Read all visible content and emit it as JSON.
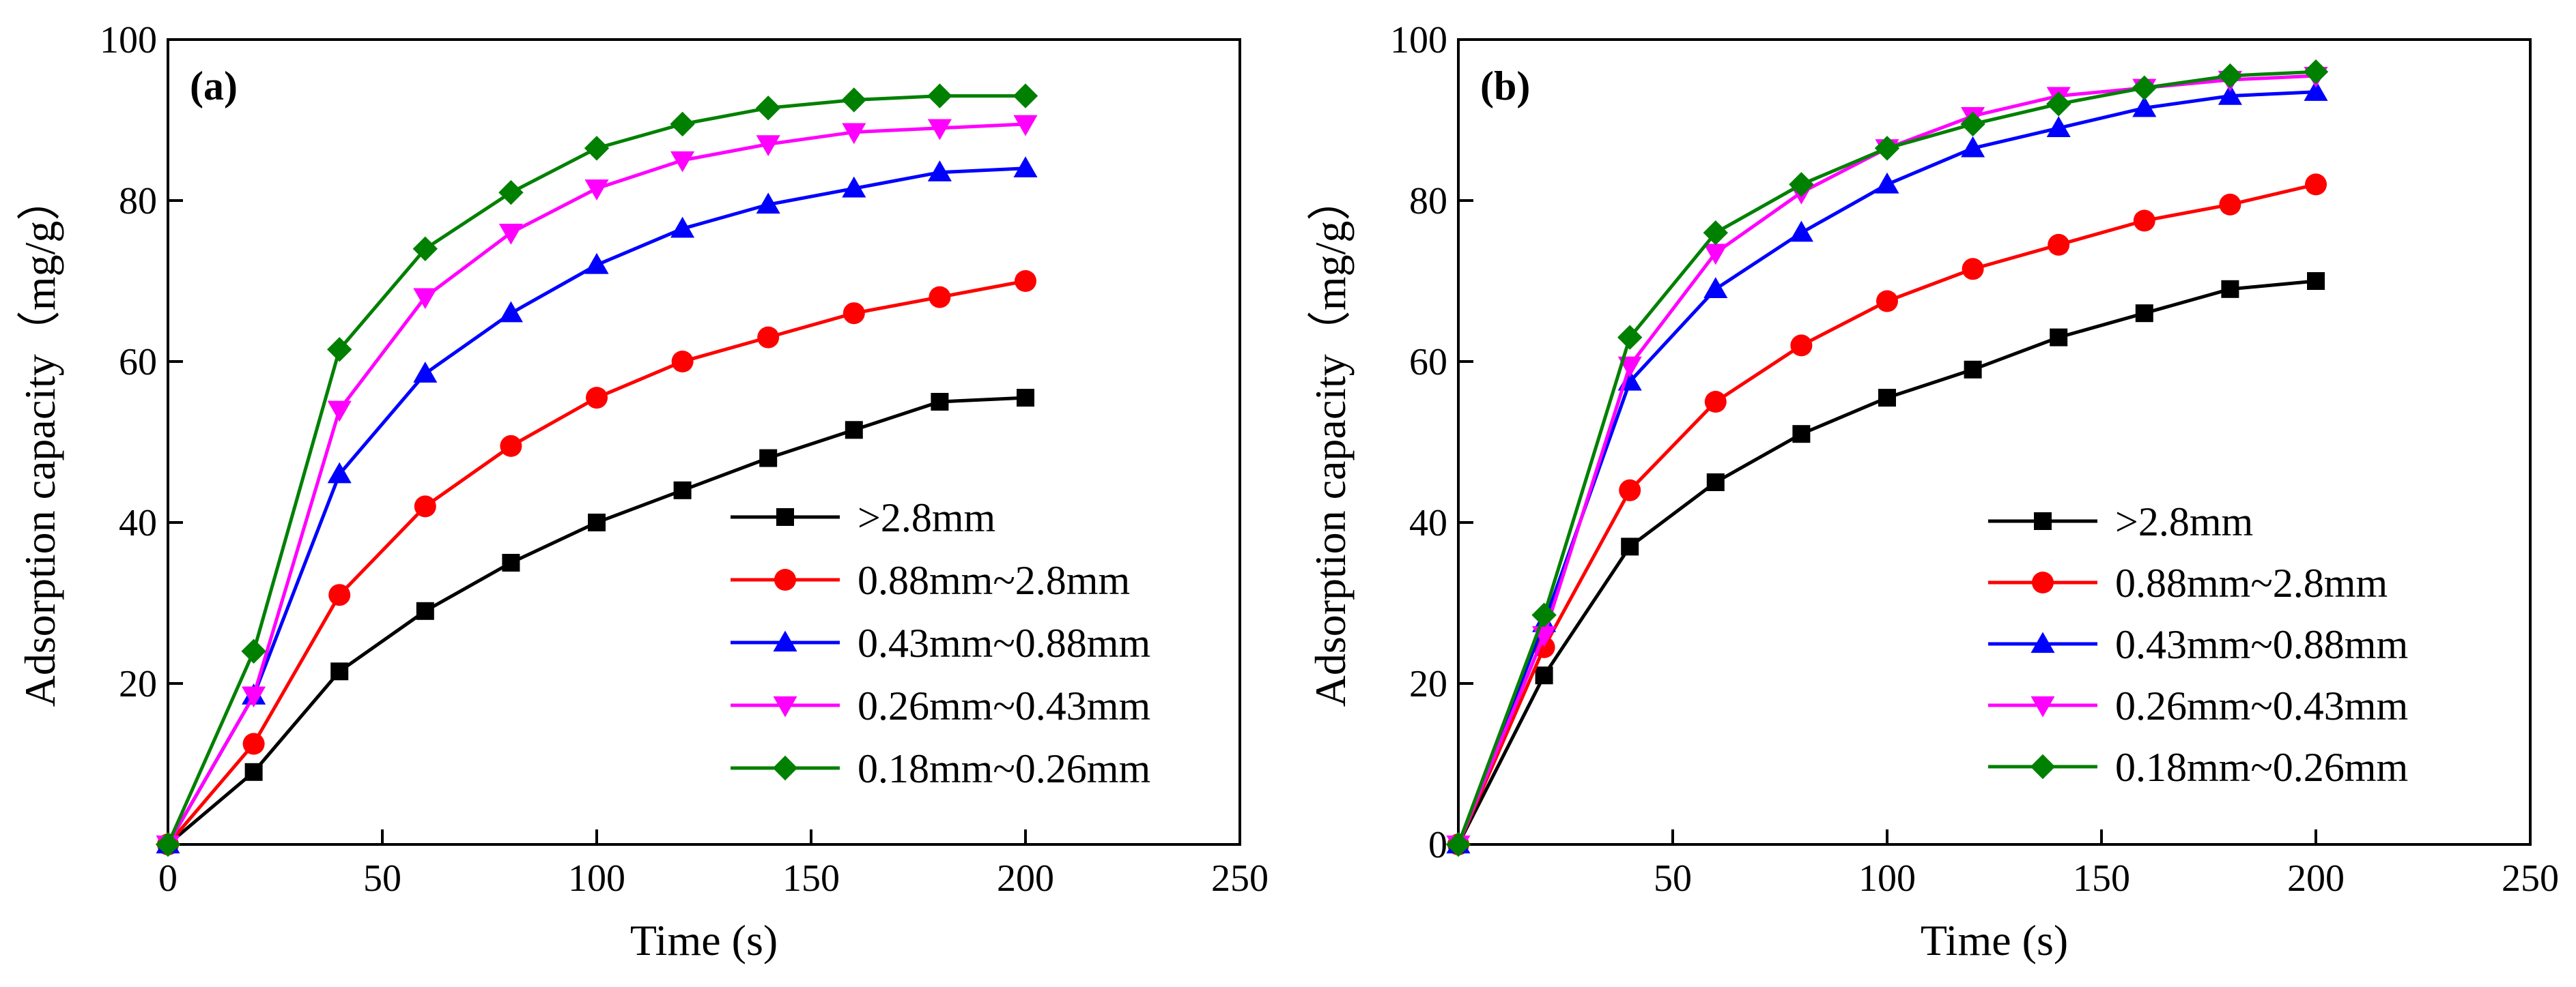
{
  "chart_data": [
    {
      "type": "line",
      "panel_label": "(a)",
      "xlabel": "Time (s)",
      "ylabel": "Adsorption capacity（mg/g）",
      "xlim": [
        0,
        250
      ],
      "ylim": [
        0,
        100
      ],
      "xticks": [
        0,
        50,
        100,
        150,
        200,
        250
      ],
      "yticks": [
        20,
        40,
        60,
        80,
        100
      ],
      "grid": false,
      "legend_position": "bottom-right",
      "x": [
        0,
        20,
        40,
        60,
        80,
        100,
        120,
        140,
        160,
        180,
        200
      ],
      "series": [
        {
          "name": ">2.8mm",
          "color": "#000000",
          "marker": "square",
          "values": [
            0,
            9,
            21.5,
            29,
            35,
            40,
            44,
            48,
            51.5,
            55,
            55.5
          ]
        },
        {
          "name": "0.88mm~2.8mm",
          "color": "#ff0000",
          "marker": "circle",
          "values": [
            0,
            12.5,
            31,
            42,
            49.5,
            55.5,
            60,
            63,
            66,
            68,
            70
          ]
        },
        {
          "name": "0.43mm~0.88mm",
          "color": "#0000ff",
          "marker": "triangle-up",
          "values": [
            0,
            18.5,
            46,
            58.5,
            66,
            72,
            76.5,
            79.5,
            81.5,
            83.5,
            84
          ]
        },
        {
          "name": "0.26mm~0.43mm",
          "color": "#ff00ff",
          "marker": "triangle-down",
          "values": [
            0,
            18.5,
            54,
            68,
            76,
            81.5,
            85,
            87,
            88.5,
            89,
            89.5
          ]
        },
        {
          "name": "0.18mm~0.26mm",
          "color": "#008000",
          "marker": "diamond",
          "values": [
            0,
            24,
            61.5,
            74,
            81,
            86.5,
            89.5,
            91.5,
            92.5,
            93,
            93
          ]
        }
      ]
    },
    {
      "type": "line",
      "panel_label": "(b)",
      "xlabel": "Time (s)",
      "ylabel": "Adsorption capacity（mg/g）",
      "xlim": [
        0,
        250
      ],
      "ylim": [
        0,
        100
      ],
      "xticks": [
        50,
        100,
        150,
        200,
        250
      ],
      "yticks": [
        0,
        20,
        40,
        60,
        80,
        100
      ],
      "grid": false,
      "legend_position": "bottom-right",
      "x": [
        0,
        20,
        40,
        60,
        80,
        100,
        120,
        140,
        160,
        180,
        200
      ],
      "series": [
        {
          "name": ">2.8mm",
          "color": "#000000",
          "marker": "square",
          "values": [
            0,
            21,
            37,
            45,
            51,
            55.5,
            59,
            63,
            66,
            69,
            70
          ]
        },
        {
          "name": "0.88mm~2.8mm",
          "color": "#ff0000",
          "marker": "circle",
          "values": [
            0,
            24.5,
            44,
            55,
            62,
            67.5,
            71.5,
            74.5,
            77.5,
            79.5,
            82
          ]
        },
        {
          "name": "0.43mm~0.88mm",
          "color": "#0000ff",
          "marker": "triangle-up",
          "values": [
            0,
            27.5,
            57.5,
            69,
            76,
            82,
            86.5,
            89,
            91.5,
            93,
            93.5
          ]
        },
        {
          "name": "0.26mm~0.43mm",
          "color": "#ff00ff",
          "marker": "triangle-down",
          "values": [
            0,
            26,
            59.5,
            73.5,
            81,
            86.5,
            90.5,
            93,
            94,
            95,
            95.5
          ]
        },
        {
          "name": "0.18mm~0.26mm",
          "color": "#008000",
          "marker": "diamond",
          "values": [
            0,
            28.5,
            63,
            76,
            82,
            86.5,
            89.5,
            92,
            94,
            95.5,
            96
          ]
        }
      ]
    }
  ]
}
